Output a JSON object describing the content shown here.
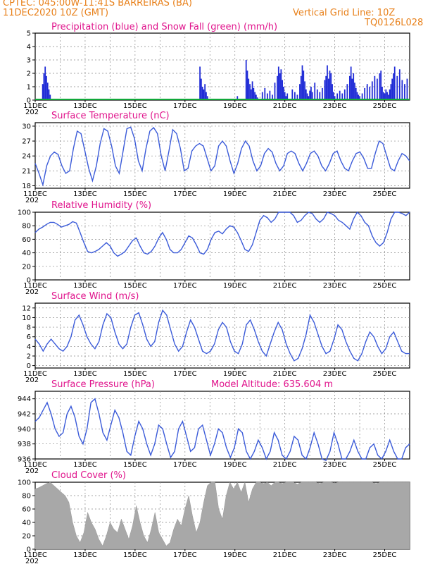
{
  "header": {
    "line1": "CPTEC:   045:00W-11:41S   BARREIRAS (BA)",
    "line2": "11DEC2020 10Z (GMT)",
    "right1": "Vertical Grid Line: 10Z",
    "right2": "TQ0126L028"
  },
  "colors": {
    "curve": "#3b5bd9",
    "precip": "#1f2bd6",
    "snow": "#11a83a",
    "cloud": "#a8a8a8",
    "title": "#e0148c",
    "header": "#e8801a",
    "grid": "#888888"
  },
  "x_axis": {
    "days": 15,
    "labels": [
      "11DEC",
      "13DEC",
      "15DEC",
      "17DEC",
      "19DEC",
      "21DEC",
      "23DEC",
      "25DEC"
    ],
    "year_fragment": "202"
  },
  "chart_data": [
    {
      "id": "precip",
      "type": "bar",
      "title": "Precipitation (blue) and Snow Fall (green) (mm/h)",
      "ylim": [
        0,
        5
      ],
      "yticks": [
        0,
        1,
        2,
        3,
        4,
        5
      ],
      "series": [
        {
          "name": "Precipitation",
          "color": "#1f2bd6",
          "x": [
            0.3,
            0.35,
            0.4,
            0.45,
            0.5,
            0.55,
            0.6,
            6.6,
            6.65,
            6.7,
            6.75,
            6.8,
            6.85,
            6.9,
            8.1,
            8.45,
            8.5,
            8.55,
            8.6,
            8.65,
            8.7,
            8.75,
            8.8,
            8.85,
            8.9,
            9.1,
            9.2,
            9.3,
            9.4,
            9.5,
            9.6,
            9.7,
            9.75,
            9.8,
            9.85,
            9.9,
            9.95,
            10.0,
            10.05,
            10.1,
            10.3,
            10.4,
            10.5,
            10.6,
            10.65,
            10.7,
            10.75,
            10.8,
            10.85,
            10.9,
            10.95,
            11.0,
            11.05,
            11.1,
            11.2,
            11.3,
            11.4,
            11.5,
            11.6,
            11.65,
            11.7,
            11.75,
            11.8,
            11.85,
            11.9,
            11.95,
            12.0,
            12.1,
            12.2,
            12.3,
            12.4,
            12.5,
            12.6,
            12.65,
            12.7,
            12.75,
            12.8,
            12.85,
            12.9,
            12.95,
            13.0,
            13.1,
            13.2,
            13.3,
            13.4,
            13.5,
            13.6,
            13.7,
            13.8,
            13.85,
            13.9,
            13.95,
            14.0,
            14.05,
            14.1,
            14.15,
            14.2,
            14.25,
            14.3,
            14.35,
            14.4,
            14.5,
            14.6,
            14.7,
            14.8,
            14.9
          ],
          "values": [
            1.2,
            2.0,
            2.5,
            1.8,
            1.3,
            0.8,
            0.4,
            2.5,
            1.6,
            1.0,
            0.8,
            1.2,
            0.6,
            0.3,
            0.3,
            3.0,
            2.2,
            1.6,
            1.2,
            0.8,
            1.4,
            0.9,
            0.6,
            0.4,
            0.2,
            0.6,
            0.9,
            0.5,
            0.7,
            0.4,
            1.3,
            1.8,
            2.5,
            2.0,
            2.3,
            1.5,
            1.0,
            0.6,
            0.3,
            0.5,
            0.8,
            0.6,
            0.4,
            1.2,
            1.8,
            2.6,
            2.2,
            1.4,
            0.8,
            0.5,
            0.3,
            0.7,
            1.0,
            0.6,
            1.3,
            0.8,
            0.6,
            0.9,
            1.5,
            1.8,
            2.6,
            1.6,
            2.2,
            2.0,
            1.2,
            0.6,
            0.3,
            0.5,
            0.7,
            0.5,
            0.8,
            1.2,
            1.8,
            2.5,
            1.6,
            2.0,
            1.3,
            0.9,
            0.6,
            0.4,
            0.3,
            0.5,
            0.9,
            1.2,
            1.0,
            1.4,
            1.8,
            1.6,
            2.0,
            2.2,
            1.0,
            0.6,
            0.5,
            0.8,
            0.6,
            0.4,
            0.8,
            1.2,
            1.6,
            2.0,
            2.5,
            1.8,
            2.3,
            1.5,
            1.2,
            1.6
          ]
        },
        {
          "name": "Snow Fall",
          "color": "#11a83a",
          "x": [
            0,
            15
          ],
          "values": [
            0,
            0
          ]
        }
      ]
    },
    {
      "id": "temp",
      "type": "line",
      "title": "Surface Temperature (nC)",
      "ylim": [
        17.5,
        30.7
      ],
      "yticks": [
        18,
        21,
        24,
        27,
        30
      ],
      "y": [
        22.5,
        20.5,
        18.2,
        22.0,
        24.0,
        24.8,
        24.3,
        22.0,
        20.5,
        21.0,
        25.5,
        29.0,
        28.5,
        25.0,
        21.5,
        19.0,
        22.0,
        26.5,
        29.5,
        29.0,
        26.0,
        22.0,
        20.5,
        25.0,
        29.5,
        29.8,
        27.5,
        23.0,
        21.0,
        25.5,
        29.0,
        29.7,
        28.5,
        24.0,
        21.0,
        25.0,
        29.3,
        28.5,
        25.5,
        21.0,
        21.5,
        25.0,
        26.0,
        26.5,
        26.0,
        23.5,
        21.0,
        22.0,
        26.0,
        27.0,
        26.0,
        23.0,
        20.5,
        22.5,
        25.5,
        27.0,
        26.0,
        23.0,
        21.0,
        22.0,
        24.5,
        25.5,
        24.8,
        22.5,
        21.0,
        22.0,
        24.5,
        25.0,
        24.5,
        22.5,
        21.0,
        22.5,
        24.5,
        25.0,
        24.0,
        22.0,
        21.0,
        22.5,
        24.5,
        25.0,
        23.0,
        21.5,
        21.0,
        23.0,
        24.5,
        24.8,
        23.5,
        21.5,
        21.5,
        24.5,
        27.0,
        26.5,
        24.0,
        21.5,
        21.0,
        23.0,
        24.5,
        24.0,
        23.0
      ]
    },
    {
      "id": "rh",
      "type": "line",
      "title": "Relative Humidity (%)",
      "ylim": [
        0,
        100
      ],
      "yticks": [
        0,
        20,
        40,
        60,
        80,
        100
      ],
      "y": [
        70,
        75,
        78,
        82,
        85,
        85,
        82,
        78,
        80,
        82,
        86,
        84,
        70,
        55,
        42,
        40,
        42,
        45,
        50,
        55,
        50,
        40,
        35,
        38,
        42,
        50,
        58,
        62,
        50,
        40,
        38,
        42,
        50,
        62,
        70,
        60,
        45,
        40,
        40,
        45,
        55,
        65,
        62,
        52,
        40,
        38,
        45,
        60,
        70,
        72,
        68,
        75,
        80,
        78,
        70,
        58,
        45,
        42,
        52,
        70,
        88,
        95,
        92,
        85,
        90,
        100,
        100,
        100,
        100,
        95,
        85,
        88,
        95,
        100,
        98,
        90,
        85,
        90,
        100,
        98,
        95,
        88,
        85,
        80,
        75,
        90,
        100,
        95,
        85,
        80,
        65,
        55,
        50,
        55,
        70,
        90,
        100,
        100,
        98,
        95,
        100
      ]
    },
    {
      "id": "wind",
      "type": "line",
      "title": "Surface Wind (m/s)",
      "ylim": [
        -0.5,
        13
      ],
      "yticks": [
        0,
        2,
        4,
        6,
        8,
        10,
        12
      ],
      "y": [
        5.5,
        4.5,
        3.0,
        4.5,
        5.5,
        4.5,
        3.5,
        3.0,
        4.0,
        6.0,
        9.5,
        10.5,
        8.5,
        6.0,
        4.5,
        3.5,
        5.0,
        8.5,
        10.8,
        10.0,
        7.0,
        4.5,
        3.5,
        4.5,
        8.0,
        10.5,
        11.0,
        8.5,
        5.5,
        4.0,
        5.0,
        9.0,
        11.5,
        10.5,
        7.5,
        4.5,
        3.0,
        4.0,
        7.0,
        9.5,
        8.0,
        5.5,
        3.0,
        2.5,
        3.0,
        4.5,
        7.5,
        9.0,
        8.0,
        5.0,
        3.0,
        2.5,
        4.5,
        8.5,
        9.5,
        7.5,
        5.0,
        3.0,
        2.0,
        4.5,
        7.0,
        9.0,
        7.5,
        4.5,
        2.5,
        1.0,
        1.5,
        3.5,
        6.5,
        10.5,
        9.0,
        6.5,
        4.0,
        2.5,
        3.0,
        5.5,
        8.5,
        7.5,
        5.0,
        3.0,
        1.5,
        1.0,
        2.5,
        5.0,
        7.0,
        6.0,
        4.0,
        2.5,
        3.5,
        6.0,
        7.0,
        5.0,
        3.0,
        2.5,
        2.5
      ]
    },
    {
      "id": "pressure",
      "type": "line",
      "title": "Surface Pressure (hPa)",
      "annotation": "Model Altitude: 635.604  m",
      "ylim": [
        936,
        945
      ],
      "yticks": [
        936,
        938,
        940,
        942,
        944
      ],
      "y": [
        941.0,
        941.5,
        942.5,
        943.5,
        942.0,
        940.0,
        939.0,
        939.5,
        942.0,
        943.0,
        941.5,
        939.0,
        938.0,
        940.0,
        943.5,
        944.0,
        942.0,
        939.5,
        938.5,
        940.5,
        942.5,
        941.5,
        939.5,
        937.0,
        936.5,
        939.0,
        941.0,
        940.0,
        938.0,
        936.5,
        938.0,
        940.5,
        940.0,
        938.0,
        936.2,
        937.0,
        940.0,
        941.0,
        939.0,
        937.0,
        937.5,
        940.0,
        940.5,
        938.5,
        936.5,
        938.0,
        940.0,
        939.5,
        937.5,
        936.2,
        937.5,
        940.0,
        939.5,
        937.0,
        936.0,
        937.0,
        938.5,
        937.5,
        936.0,
        937.0,
        939.5,
        938.5,
        936.5,
        936.0,
        937.0,
        939.0,
        938.5,
        936.5,
        936.0,
        937.5,
        939.5,
        938.0,
        936.0,
        935.8,
        937.0,
        939.5,
        938.0,
        936.0,
        936.0,
        937.0,
        938.5,
        937.0,
        936.0,
        936.0,
        937.5,
        938.0,
        936.5,
        936.0,
        937.0,
        938.5,
        937.0,
        936.0,
        936.0,
        937.5,
        938.0
      ]
    },
    {
      "id": "cloud",
      "type": "area",
      "title": "Cloud Cover (%)",
      "ylim": [
        0,
        100
      ],
      "yticks": [
        0,
        20,
        40,
        60,
        80,
        100
      ],
      "y": [
        90,
        92,
        95,
        98,
        100,
        95,
        90,
        85,
        80,
        70,
        40,
        20,
        10,
        25,
        55,
        40,
        30,
        15,
        5,
        20,
        40,
        30,
        25,
        45,
        30,
        15,
        35,
        65,
        40,
        20,
        10,
        30,
        55,
        25,
        15,
        5,
        10,
        30,
        45,
        35,
        60,
        80,
        50,
        25,
        40,
        70,
        95,
        100,
        100,
        60,
        45,
        80,
        100,
        90,
        100,
        85,
        100,
        70,
        90,
        100,
        100,
        98,
        100,
        95,
        100,
        100,
        98,
        100,
        100,
        100,
        97,
        100,
        100,
        100,
        100,
        100,
        98,
        100,
        100,
        100,
        99,
        100,
        100,
        100,
        100,
        100,
        100,
        100,
        100,
        100,
        100,
        98,
        100,
        100,
        100,
        100,
        100,
        100,
        100,
        100,
        100
      ]
    }
  ]
}
